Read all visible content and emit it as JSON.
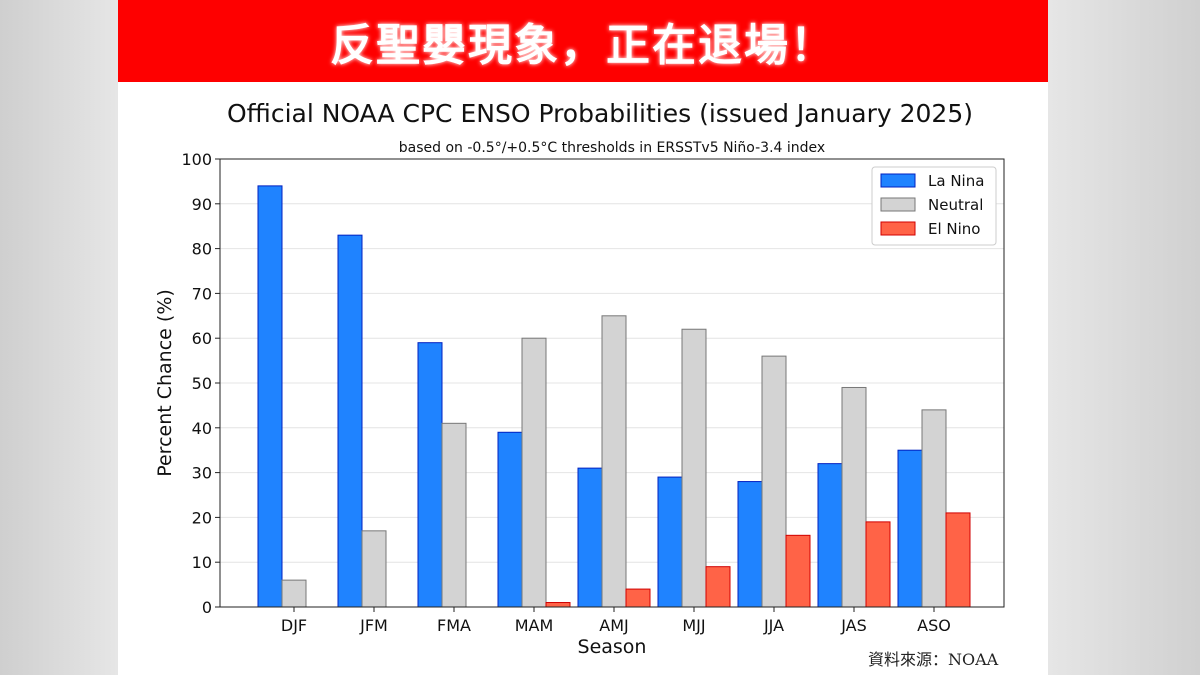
{
  "banner": {
    "text": "反聖嬰現象，正在退場！"
  },
  "source": "資料來源：NOAA",
  "chart_data": {
    "type": "bar",
    "title": "Official NOAA CPC ENSO Probabilities (issued January 2025)",
    "subtitle": "based on -0.5°/+0.5°C thresholds in ERSSTv5 Niño-3.4 index",
    "xlabel": "Season",
    "ylabel": "Percent Chance (%)",
    "ylim": [
      0,
      100
    ],
    "yticks": [
      0,
      10,
      20,
      30,
      40,
      50,
      60,
      70,
      80,
      90,
      100
    ],
    "grid": true,
    "legend_position": "top-right",
    "categories": [
      "DJF",
      "JFM",
      "FMA",
      "MAM",
      "AMJ",
      "MJJ",
      "JJA",
      "JAS",
      "ASO"
    ],
    "series": [
      {
        "name": "La Nina",
        "color": "#1f83ff",
        "edge": "#0020c0",
        "values": [
          94,
          83,
          59,
          39,
          31,
          29,
          28,
          32,
          35
        ]
      },
      {
        "name": "Neutral",
        "color": "#d3d3d3",
        "edge": "#777777",
        "values": [
          6,
          17,
          41,
          60,
          65,
          62,
          56,
          49,
          44
        ]
      },
      {
        "name": "El Nino",
        "color": "#ff6347",
        "edge": "#d00000",
        "values": [
          0,
          0,
          0,
          1,
          4,
          9,
          16,
          19,
          21
        ]
      }
    ]
  }
}
